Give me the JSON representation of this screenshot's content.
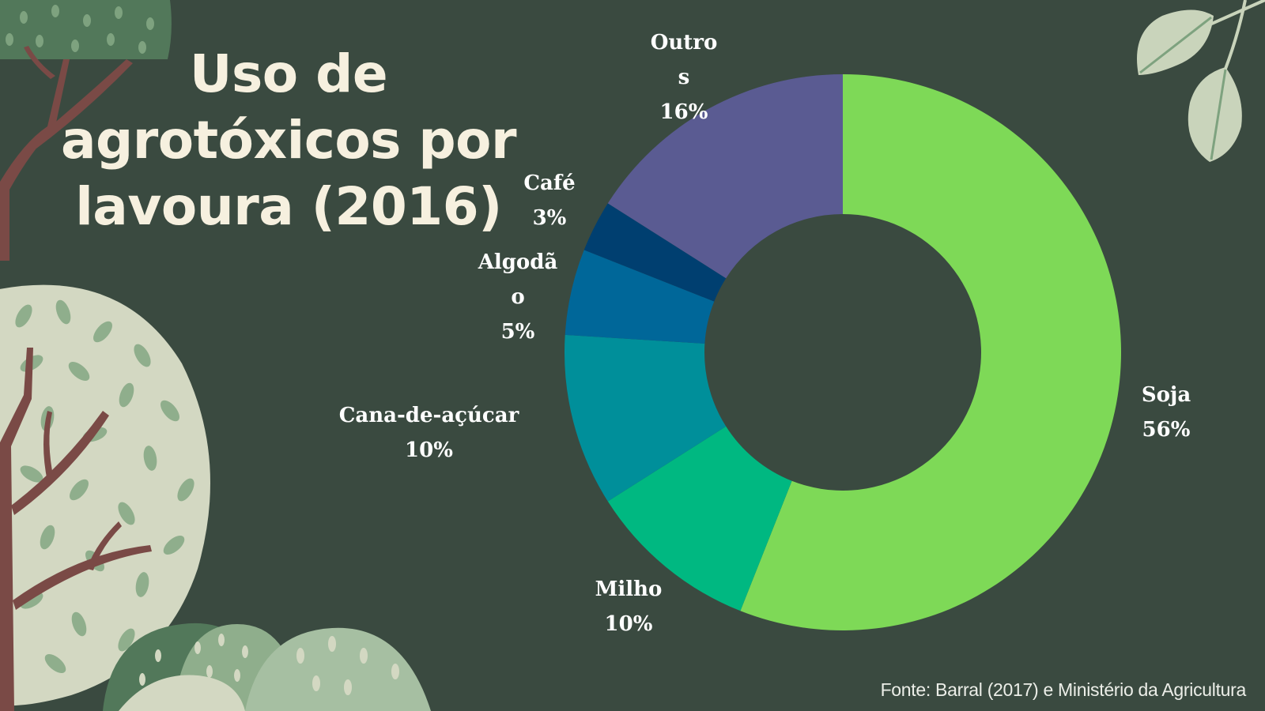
{
  "title": "Uso de agrotóxicos por lavoura (2016)",
  "source": "Fonte: Barral (2017) e Ministério da Agricultura",
  "colors": {
    "background": "#3a4a40",
    "title": "#f6f0df",
    "soja": "#7ed957",
    "milho": "#00b881",
    "cana": "#008f9a",
    "algodao": "#006799",
    "cafe": "#003f70",
    "outros": "#5a5b92"
  },
  "chart_data": {
    "type": "pie",
    "variant": "donut",
    "title": "Uso de agrotóxicos por lavoura (2016)",
    "categories": [
      "Soja",
      "Milho",
      "Cana-de-açúcar",
      "Algodão",
      "Café",
      "Outros"
    ],
    "values": [
      56,
      10,
      10,
      5,
      3,
      16
    ],
    "unit": "%",
    "labels": [
      {
        "lines": [
          "Soja",
          "56%"
        ]
      },
      {
        "lines": [
          "Milho",
          "10%"
        ]
      },
      {
        "lines": [
          "Cana-de-açúcar",
          "10%"
        ]
      },
      {
        "lines": [
          "Algodã",
          "o",
          "5%"
        ]
      },
      {
        "lines": [
          "Café",
          "3%"
        ]
      },
      {
        "lines": [
          "Outro",
          "s",
          "16%"
        ]
      }
    ],
    "legend": "none"
  }
}
